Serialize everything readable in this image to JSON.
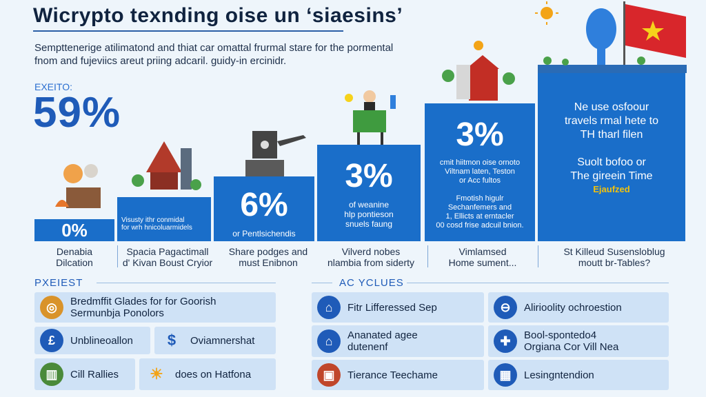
{
  "title": "Wicrypto texnding oise un ‘siaesins’",
  "subtitle": "Sempttenerige atilimatond and thiat car omattal frurmal stare for the pormental fnom and fujeviics areut priing adcaril. guidy-in ercinidr.",
  "stat": {
    "label": "EXEITO:",
    "value": "59%"
  },
  "bars": [
    {
      "pct": "0%",
      "desc": "",
      "caption": "Denabia\nDilcation"
    },
    {
      "pct": "",
      "desc": "Visusty ithr conmidal\nfor wrh hnicoluarmidels",
      "caption": "Spacia Pagactimall\nd' Kivan Boust Cryior"
    },
    {
      "pct": "6%",
      "desc": "or Pentlsichendis",
      "caption": "Share podges and\nmust Enibnon"
    },
    {
      "pct": "3%",
      "desc": "of weanine\nhlp pontieson\nsnuels faung",
      "caption": "Vilverd nobes\nnlambia from siderty"
    },
    {
      "pct": "3%",
      "desc": "cmit hiitmon oise ornoto\nViltnam laten, Teston\nor Acc fultos\n\nFmotish higulr\nSechanfemers and\n1, Ellicts at erntacler\n00 cosd frise adcuil bnion.",
      "caption": "Vimlamsed\nHome sument..."
    },
    {
      "pct": "",
      "desc": "Ne use osfoour\ntravels rmal hete to\nTH tharl filen\n\nSuolt bofoo or\nThe gireein Time",
      "highlight": "Ejaufzed",
      "caption": "St Killeud Susensloblug\nmoutt br-Tables?"
    }
  ],
  "left_section": {
    "header": "PXEIEST",
    "items": [
      {
        "icon": "coin-icon",
        "text": "Bredmffit Glades for for Goorish\nSermunbja Ponolors"
      },
      {
        "icon": "pound-icon",
        "text": "Unblineoallon"
      },
      {
        "icon": "dollar-icon",
        "text": "Oviamnershat"
      },
      {
        "icon": "building-icon",
        "text": "Cill Rallies"
      },
      {
        "icon": "sun-icon",
        "text": "does on Hatfona"
      }
    ]
  },
  "right_section": {
    "header": "AC YCLUES",
    "items": [
      {
        "icon": "thermometer-icon",
        "text": "Fitr Lifferessed Sep"
      },
      {
        "icon": "balance-icon",
        "text": "Alirioolity ochroestion"
      },
      {
        "icon": "house-icon",
        "text": "Ananated agee\ndutenenf"
      },
      {
        "icon": "cross-icon",
        "text": "Bool-spontedo4\nOrgiana Cor Vill Nea"
      },
      {
        "icon": "toolbox-icon",
        "text": "Tierance Teechame"
      },
      {
        "icon": "grid-icon",
        "text": "Lesingntendion"
      }
    ]
  },
  "colors": {
    "accent": "#1a6ec9",
    "dark": "#10233f",
    "card": "#cfe2f6",
    "highlight": "#f2c20c"
  }
}
